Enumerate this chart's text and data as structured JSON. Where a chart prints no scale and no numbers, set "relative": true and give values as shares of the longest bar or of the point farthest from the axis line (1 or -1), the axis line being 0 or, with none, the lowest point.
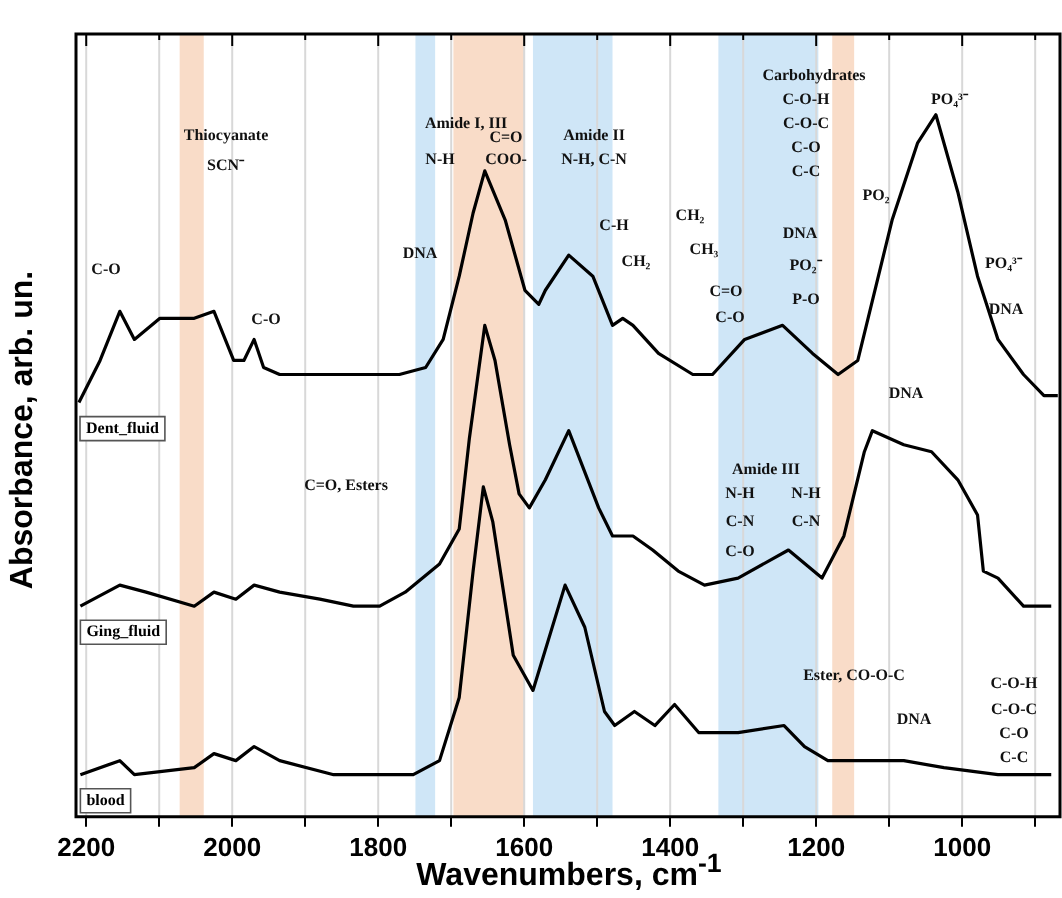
{
  "chart_data": {
    "type": "line",
    "relative": true,
    "xlabel": "Wavenumbers, cm$^{-1}$",
    "ylabel": "Absorbance, arb. un.",
    "xlim": [
      2214,
      866
    ],
    "xticks": [
      2200,
      {
        "value": 2100,
        "label": null
      },
      2000,
      {
        "value": 1900,
        "label": null
      },
      1800,
      {
        "value": 1700,
        "label": null
      },
      1600,
      {
        "value": 1500,
        "label": null
      },
      1400,
      {
        "value": 1300,
        "label": null
      },
      1200,
      {
        "value": 1100,
        "label": null
      },
      1000,
      {
        "value": 900,
        "label": null
      }
    ],
    "grid": "x",
    "legend": false,
    "marker": "none",
    "line_style": "solid",
    "series": [
      {
        "name": "Dent_fluid",
        "color": "#000000",
        "x": [
          2210,
          2181,
          2154,
          2134,
          2099,
          2091,
          2052,
          2025,
          1998,
          1984,
          1970,
          1957,
          1935,
          1861,
          1807,
          1771,
          1735,
          1711,
          1689,
          1670,
          1654,
          1626,
          1599,
          1580,
          1571,
          1539,
          1506,
          1479,
          1465,
          1451,
          1416,
          1369,
          1342,
          1298,
          1246,
          1205,
          1170,
          1143,
          1096,
          1061,
          1036,
          1006,
          979,
          951,
          916,
          888,
          869
        ],
        "values": [
          0.59,
          0.65,
          0.72,
          0.68,
          0.71,
          0.71,
          0.71,
          0.72,
          0.65,
          0.65,
          0.68,
          0.64,
          0.63,
          0.63,
          0.63,
          0.63,
          0.64,
          0.68,
          0.77,
          0.86,
          0.92,
          0.85,
          0.75,
          0.73,
          0.75,
          0.8,
          0.77,
          0.7,
          0.71,
          0.7,
          0.66,
          0.63,
          0.63,
          0.68,
          0.7,
          0.66,
          0.63,
          0.65,
          0.85,
          0.96,
          1,
          0.89,
          0.77,
          0.68,
          0.63,
          0.6,
          0.6
        ]
      },
      {
        "name": "Ging_fluid",
        "color": "#000000",
        "x": [
          2208,
          2154,
          2118,
          2052,
          2025,
          1995,
          1970,
          1935,
          1880,
          1834,
          1798,
          1763,
          1716,
          1689,
          1675,
          1654,
          1640,
          1620,
          1607,
          1593,
          1571,
          1539,
          1498,
          1479,
          1451,
          1424,
          1389,
          1353,
          1307,
          1238,
          1192,
          1162,
          1134,
          1123,
          1080,
          1042,
          1006,
          979,
          971,
          951,
          916,
          878
        ],
        "values": [
          0.3,
          0.33,
          0.32,
          0.3,
          0.32,
          0.31,
          0.33,
          0.32,
          0.31,
          0.3,
          0.3,
          0.32,
          0.36,
          0.41,
          0.54,
          0.7,
          0.65,
          0.53,
          0.46,
          0.44,
          0.48,
          0.55,
          0.44,
          0.4,
          0.4,
          0.38,
          0.35,
          0.33,
          0.34,
          0.38,
          0.34,
          0.4,
          0.52,
          0.55,
          0.53,
          0.52,
          0.48,
          0.43,
          0.35,
          0.34,
          0.3,
          0.3
        ]
      },
      {
        "name": "blood",
        "color": "#000000",
        "x": [
          2208,
          2154,
          2134,
          2052,
          2025,
          1995,
          1970,
          1935,
          1861,
          1752,
          1716,
          1689,
          1670,
          1656,
          1643,
          1615,
          1588,
          1544,
          1517,
          1490,
          1476,
          1449,
          1421,
          1394,
          1361,
          1307,
          1244,
          1216,
          1184,
          1134,
          1080,
          1025,
          951,
          878
        ],
        "values": [
          0.06,
          0.08,
          0.06,
          0.07,
          0.09,
          0.08,
          0.1,
          0.08,
          0.06,
          0.06,
          0.08,
          0.17,
          0.35,
          0.47,
          0.42,
          0.23,
          0.18,
          0.33,
          0.27,
          0.15,
          0.13,
          0.15,
          0.13,
          0.16,
          0.12,
          0.12,
          0.13,
          0.1,
          0.08,
          0.08,
          0.08,
          0.07,
          0.06,
          0.06
        ]
      }
    ],
    "bands": [
      {
        "axis": "x",
        "from": 2072,
        "to": 2039,
        "color": "#f9dcc8"
      },
      {
        "axis": "x",
        "from": 1749,
        "to": 1722,
        "color": "#cfe6f7"
      },
      {
        "axis": "x",
        "from": 1697,
        "to": 1599,
        "color": "#f9dcc8"
      },
      {
        "axis": "x",
        "from": 1588,
        "to": 1479,
        "color": "#cfe6f7"
      },
      {
        "axis": "x",
        "from": 1334,
        "to": 1197,
        "color": "#cfe6f7"
      },
      {
        "axis": "x",
        "from": 1178,
        "to": 1148,
        "color": "#f9dcc8"
      }
    ],
    "annotations": [
      "Thiocyanate",
      "SCN⁻",
      "C-O",
      "C-O",
      "DNA",
      "Amide I, III",
      "N-H",
      "C=O",
      "COO-",
      "Amide II",
      "N-H, C-N",
      "C-H",
      "CH₂",
      "CH₂",
      "CH₃",
      "C=O",
      "C-O",
      "DNA",
      "PO₂⁻",
      "P-O",
      "Carbohydrates",
      "C-O-H",
      "C-O-C",
      "C-O",
      "C-C",
      "PO₂",
      "PO₄³⁻",
      "PO₄³⁻",
      "DNA",
      "DNA",
      "Amide III",
      "N-H",
      "N-H",
      "C-N",
      "C-N",
      "C-O",
      "C=O, Esters",
      "Ester, CO-O-C",
      "DNA",
      "C-O-H",
      "C-O-C",
      "C-O",
      "C-C"
    ]
  }
}
